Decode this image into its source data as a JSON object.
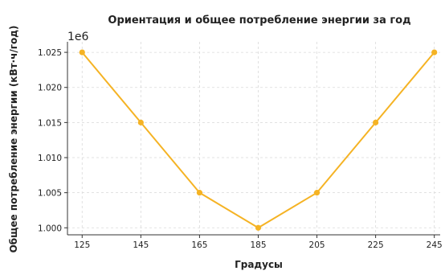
{
  "chart_data": {
    "type": "line",
    "title": "Ориентация и общее потребление энергии за год",
    "xlabel": "Градусы",
    "ylabel": "Общее потребление энергии (кВт·ч/год)",
    "y_offset_label": "1e6",
    "x": [
      125,
      145,
      165,
      185,
      205,
      225,
      245
    ],
    "x_tick_labels": [
      "125",
      "145",
      "165",
      "185",
      "205",
      "225",
      "245"
    ],
    "y_tick_values": [
      1.0,
      1.005,
      1.01,
      1.015,
      1.02,
      1.025
    ],
    "y_tick_labels": [
      "1.000",
      "1.005",
      "1.010",
      "1.015",
      "1.020",
      "1.025"
    ],
    "xlim": [
      120,
      247
    ],
    "ylim": [
      0.999,
      1.0265
    ],
    "grid": true,
    "series": [
      {
        "values": [
          1.025,
          1.015,
          1.005,
          1.0,
          1.005,
          1.015,
          1.025
        ],
        "color": "#f5b324",
        "marker": "circle"
      }
    ]
  }
}
